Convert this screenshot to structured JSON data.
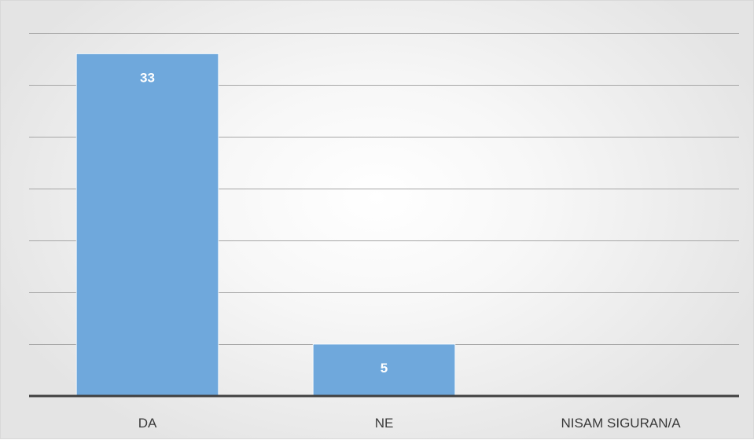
{
  "chart_data": {
    "type": "bar",
    "categories": [
      "DA",
      "NE",
      "NISAM SIGURAN/A"
    ],
    "values": [
      33,
      5,
      0
    ],
    "data_labels": [
      "33",
      "5",
      ""
    ],
    "title": "",
    "xlabel": "",
    "ylabel": "",
    "ylim": [
      0,
      35
    ],
    "ytick_step": 5,
    "y_tick_labels_shown": false,
    "grid": true,
    "legend": "none",
    "colors": {
      "bar": "#6fa8dc",
      "gridline": "#a6a6a6",
      "axis": "#404040",
      "data_label": "#ffffff",
      "tick_label": "#3a3a3a"
    }
  }
}
